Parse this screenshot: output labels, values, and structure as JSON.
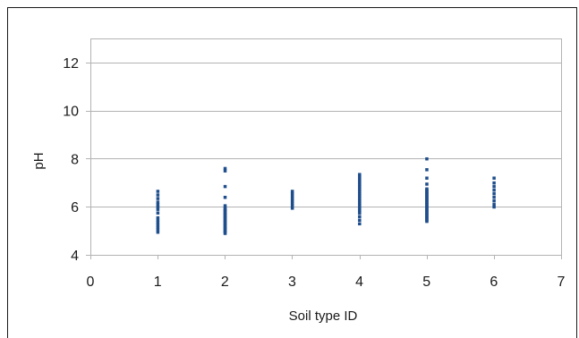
{
  "chart_data": {
    "type": "scatter",
    "title": "",
    "xlabel": "Soil type ID",
    "ylabel": "pH",
    "xlim": [
      0,
      7
    ],
    "ylim": [
      4,
      13
    ],
    "x_ticks": [
      "0",
      "1",
      "2",
      "3",
      "4",
      "5",
      "6",
      "7"
    ],
    "y_ticks": [
      "4",
      "6",
      "8",
      "10",
      "12"
    ],
    "grid": "horizontal",
    "legend": "none",
    "marker_color": "#1f4e8c",
    "series": [
      {
        "points": [
          [
            1,
            4.95
          ],
          [
            1,
            5.05
          ],
          [
            1,
            5.15
          ],
          [
            1,
            5.25
          ],
          [
            1,
            5.35
          ],
          [
            1,
            5.45
          ],
          [
            1,
            5.55
          ],
          [
            1,
            5.75
          ],
          [
            1,
            5.9
          ],
          [
            1,
            6.0
          ],
          [
            1,
            6.1
          ],
          [
            1,
            6.2
          ],
          [
            1,
            6.35
          ],
          [
            1,
            6.5
          ],
          [
            1,
            6.65
          ],
          [
            2,
            4.9
          ],
          [
            2,
            4.95
          ],
          [
            2,
            5.0
          ],
          [
            2,
            5.05
          ],
          [
            2,
            5.1
          ],
          [
            2,
            5.15
          ],
          [
            2,
            5.2
          ],
          [
            2,
            5.25
          ],
          [
            2,
            5.3
          ],
          [
            2,
            5.35
          ],
          [
            2,
            5.4
          ],
          [
            2,
            5.45
          ],
          [
            2,
            5.5
          ],
          [
            2,
            5.55
          ],
          [
            2,
            5.6
          ],
          [
            2,
            5.65
          ],
          [
            2,
            5.7
          ],
          [
            2,
            5.75
          ],
          [
            2,
            5.8
          ],
          [
            2,
            5.85
          ],
          [
            2,
            5.9
          ],
          [
            2,
            5.95
          ],
          [
            2,
            6.05
          ],
          [
            2,
            6.4
          ],
          [
            2,
            6.85
          ],
          [
            2,
            7.5
          ],
          [
            2,
            7.6
          ],
          [
            3,
            5.95
          ],
          [
            3,
            6.05
          ],
          [
            3,
            6.15
          ],
          [
            3,
            6.25
          ],
          [
            3,
            6.35
          ],
          [
            3,
            6.45
          ],
          [
            3,
            6.55
          ],
          [
            3,
            6.65
          ],
          [
            4,
            5.3
          ],
          [
            4,
            5.45
          ],
          [
            4,
            5.6
          ],
          [
            4,
            5.75
          ],
          [
            4,
            5.85
          ],
          [
            4,
            5.95
          ],
          [
            4,
            6.05
          ],
          [
            4,
            6.15
          ],
          [
            4,
            6.25
          ],
          [
            4,
            6.35
          ],
          [
            4,
            6.45
          ],
          [
            4,
            6.55
          ],
          [
            4,
            6.65
          ],
          [
            4,
            6.75
          ],
          [
            4,
            6.85
          ],
          [
            4,
            6.95
          ],
          [
            4,
            7.05
          ],
          [
            4,
            7.15
          ],
          [
            4,
            7.25
          ],
          [
            4,
            7.35
          ],
          [
            5,
            5.4
          ],
          [
            5,
            5.45
          ],
          [
            5,
            5.5
          ],
          [
            5,
            5.55
          ],
          [
            5,
            5.6
          ],
          [
            5,
            5.65
          ],
          [
            5,
            5.7
          ],
          [
            5,
            5.75
          ],
          [
            5,
            5.8
          ],
          [
            5,
            5.85
          ],
          [
            5,
            5.9
          ],
          [
            5,
            5.95
          ],
          [
            5,
            6.0
          ],
          [
            5,
            6.05
          ],
          [
            5,
            6.1
          ],
          [
            5,
            6.15
          ],
          [
            5,
            6.2
          ],
          [
            5,
            6.25
          ],
          [
            5,
            6.3
          ],
          [
            5,
            6.35
          ],
          [
            5,
            6.4
          ],
          [
            5,
            6.45
          ],
          [
            5,
            6.5
          ],
          [
            5,
            6.55
          ],
          [
            5,
            6.6
          ],
          [
            5,
            6.65
          ],
          [
            5,
            6.7
          ],
          [
            5,
            6.75
          ],
          [
            5,
            6.95
          ],
          [
            5,
            7.2
          ],
          [
            5,
            7.55
          ],
          [
            5,
            8.0
          ],
          [
            6,
            6.0
          ],
          [
            6,
            6.1
          ],
          [
            6,
            6.25
          ],
          [
            6,
            6.4
          ],
          [
            6,
            6.55
          ],
          [
            6,
            6.7
          ],
          [
            6,
            6.85
          ],
          [
            6,
            7.0
          ],
          [
            6,
            7.2
          ]
        ]
      }
    ]
  }
}
